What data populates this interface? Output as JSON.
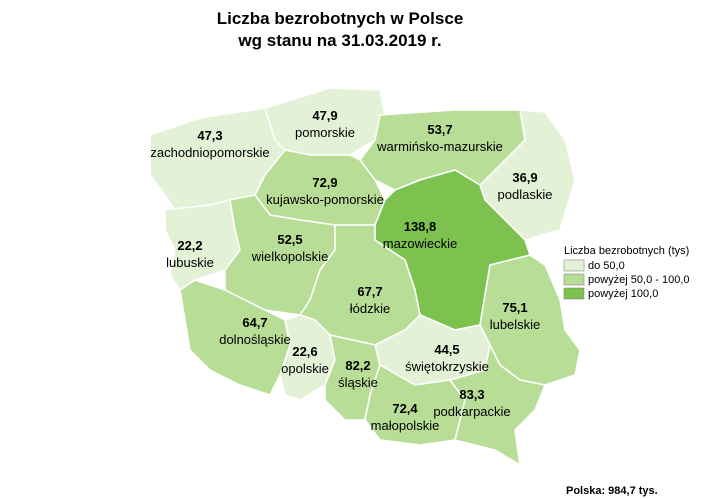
{
  "title": [
    "Liczba bezrobotnych w Polsce",
    "wg stanu na 31.03.2019 r."
  ],
  "regions": [
    {
      "name": "zachodniopomorskie",
      "value": "47,3",
      "color": "#e3f1d6"
    },
    {
      "name": "pomorskie",
      "value": "47,9",
      "color": "#e3f1d6"
    },
    {
      "name": "warmińsko-mazurskie",
      "value": "53,7",
      "color": "#b8dd97"
    },
    {
      "name": "podlaskie",
      "value": "36,9",
      "color": "#e3f1d6"
    },
    {
      "name": "kujawsko-pomorskie",
      "value": "72,9",
      "color": "#b8dd97"
    },
    {
      "name": "mazowieckie",
      "value": "138,8",
      "color": "#7dc24e"
    },
    {
      "name": "lubuskie",
      "value": "22,2",
      "color": "#e3f1d6"
    },
    {
      "name": "wielkopolskie",
      "value": "52,5",
      "color": "#b8dd97"
    },
    {
      "name": "łódzkie",
      "value": "67,7",
      "color": "#b8dd97"
    },
    {
      "name": "lubelskie",
      "value": "75,1",
      "color": "#b8dd97"
    },
    {
      "name": "dolnośląskie",
      "value": "64,7",
      "color": "#b8dd97"
    },
    {
      "name": "opolskie",
      "value": "22,6",
      "color": "#e3f1d6"
    },
    {
      "name": "śląskie",
      "value": "82,2",
      "color": "#b8dd97"
    },
    {
      "name": "świętokrzyskie",
      "value": "44,5",
      "color": "#e3f1d6"
    },
    {
      "name": "małopolskie",
      "value": "72,4",
      "color": "#b8dd97"
    },
    {
      "name": "podkarpackie",
      "value": "83,3",
      "color": "#b8dd97"
    }
  ],
  "legend": {
    "title": "Liczba bezrobotnych (tys)",
    "items": [
      {
        "label": "do 50,0",
        "color": "#e3f1d6"
      },
      {
        "label": "powyżej 50,0 - 100,0",
        "color": "#b8dd97"
      },
      {
        "label": "powyżej 100,0",
        "color": "#7dc24e"
      }
    ]
  },
  "footer": "Polska: 984,7 tys."
}
